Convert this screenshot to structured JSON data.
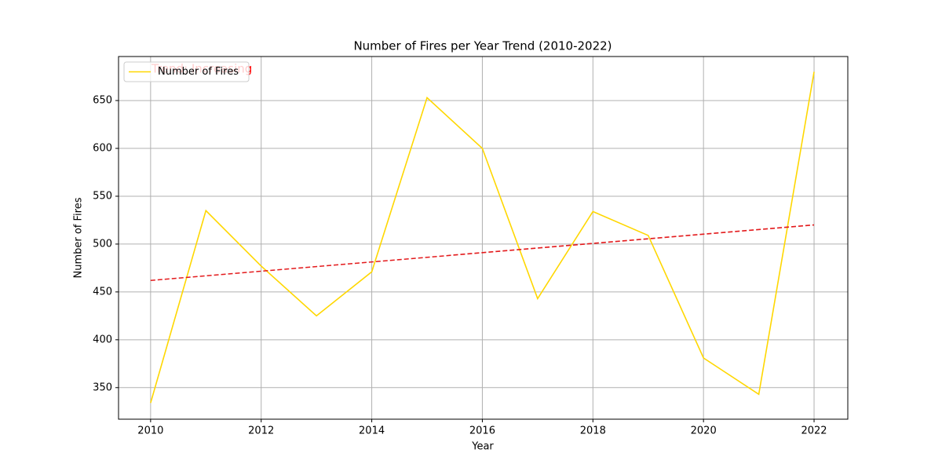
{
  "chart_data": {
    "type": "line",
    "title": "Number of Fires per Year Trend (2010-2022)",
    "x_label": "Year",
    "y_label": "Number of Fires",
    "x": [
      2010,
      2011,
      2012,
      2013,
      2014,
      2015,
      2016,
      2017,
      2018,
      2019,
      2020,
      2021,
      2022
    ],
    "series": [
      {
        "name": "Number of Fires",
        "color": "#ffd700",
        "values": [
          334,
          535,
          477,
          425,
          471,
          653,
          600,
          443,
          534,
          509,
          381,
          343,
          680
        ]
      }
    ],
    "trend": {
      "x": [
        2010,
        2022
      ],
      "values": [
        462,
        520
      ],
      "color": "#e31a1c"
    },
    "annotation": "Trend: Increasing",
    "annotation_color": "#ff0000",
    "xlim": [
      2009.42,
      2022.61
    ],
    "ylim": [
      317,
      696
    ],
    "xticks": [
      2010,
      2012,
      2014,
      2016,
      2018,
      2020,
      2022
    ],
    "yticks": [
      350,
      400,
      450,
      500,
      550,
      600,
      650
    ],
    "grid": true,
    "legend": "upper left"
  }
}
